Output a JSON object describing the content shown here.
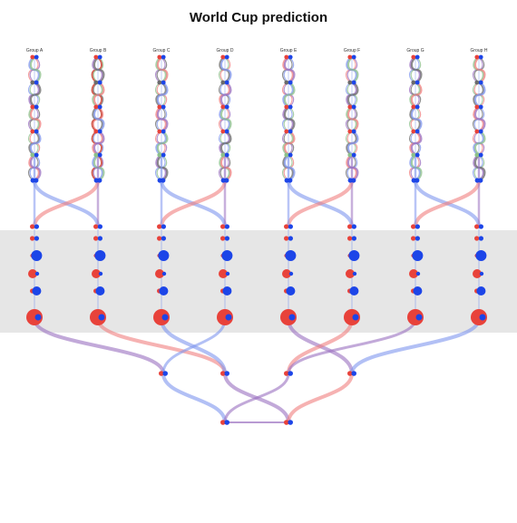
{
  "title": "World Cup prediction",
  "groups": [
    "Group A",
    "Group B",
    "Group C",
    "Group D",
    "Group E",
    "Group F",
    "Group G",
    "Group H"
  ],
  "colors": {
    "team_one": "#e8423a",
    "team_two": "#1c45e8",
    "home_link": "#f07f7f",
    "away_link": "#7f96ee",
    "mixed_link": "#9a6fc0",
    "third_link": "#8cc08a",
    "fourth_link": "#6b6b6b",
    "highlight_link": "#c42a1a",
    "knockout_band": "#e6e6e6"
  },
  "legend": []
}
